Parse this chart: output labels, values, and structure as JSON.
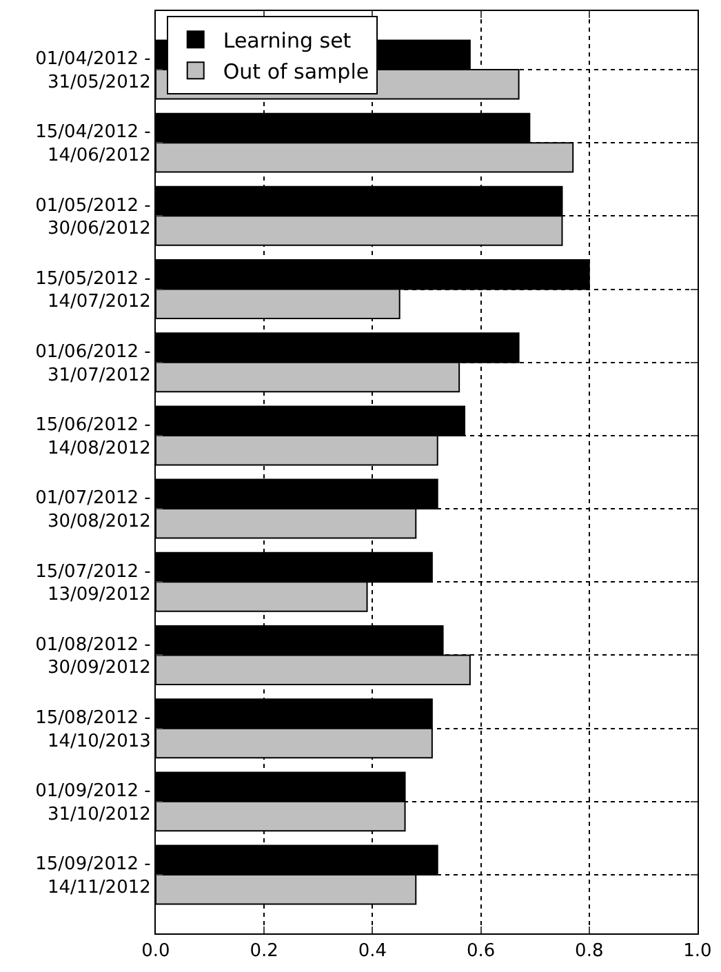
{
  "chart_data": {
    "type": "bar",
    "orientation": "horizontal",
    "categories": [
      "01/04/2012 -\n31/05/2012",
      "15/04/2012 -\n14/06/2012",
      "01/05/2012 -\n30/06/2012",
      "15/05/2012 -\n14/07/2012",
      "01/06/2012 -\n31/07/2012",
      "15/06/2012 -\n14/08/2012",
      "01/07/2012 -\n30/08/2012",
      "15/07/2012 -\n13/09/2012",
      "01/08/2012 -\n30/09/2012",
      "15/08/2012 -\n14/10/2013",
      "01/09/2012 -\n31/10/2012",
      "15/09/2012 -\n14/11/2012"
    ],
    "series": [
      {
        "name": "Learning set",
        "color": "#000000",
        "values": [
          0.58,
          0.69,
          0.75,
          0.8,
          0.67,
          0.57,
          0.52,
          0.51,
          0.53,
          0.51,
          0.46,
          0.52
        ]
      },
      {
        "name": "Out of sample",
        "color": "#bfbfbf",
        "values": [
          0.67,
          0.77,
          0.75,
          0.45,
          0.56,
          0.52,
          0.48,
          0.39,
          0.58,
          0.51,
          0.46,
          0.48
        ]
      }
    ],
    "xlim": [
      0.0,
      1.0
    ],
    "xticks": [
      {
        "value": 0.0,
        "label": "0.0"
      },
      {
        "value": 0.2,
        "label": "0.2"
      },
      {
        "value": 0.4,
        "label": "0.4"
      },
      {
        "value": 0.6,
        "label": "0.6"
      },
      {
        "value": 0.8,
        "label": "0.8"
      },
      {
        "value": 1.0,
        "label": "1.0"
      }
    ],
    "grid": true,
    "legend": "top left"
  }
}
